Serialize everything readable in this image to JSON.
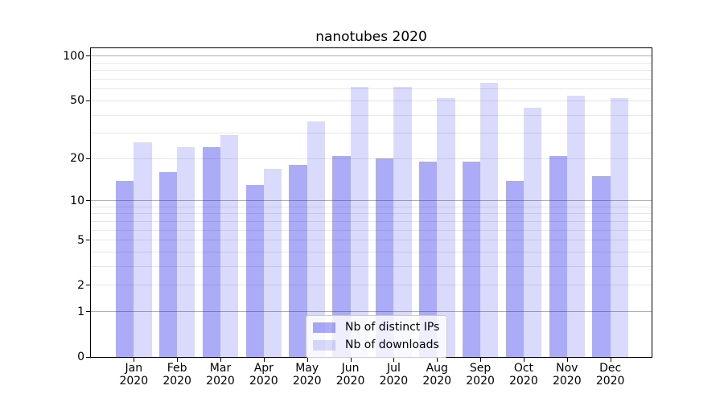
{
  "title": "nanotubes 2020",
  "chart_data": {
    "type": "bar",
    "title": "nanotubes 2020",
    "categories": [
      "Jan",
      "Feb",
      "Mar",
      "Apr",
      "May",
      "Jun",
      "Jul",
      "Aug",
      "Sep",
      "Oct",
      "Nov",
      "Dec"
    ],
    "category_year": "2020",
    "series": [
      {
        "name": "Nb of distinct IPs",
        "color": "rgba(10,10,235,0.34)",
        "values": [
          14,
          16,
          24,
          13,
          18,
          21,
          20,
          19,
          19,
          14,
          21,
          15
        ]
      },
      {
        "name": "Nb of downloads",
        "color": "rgba(10,10,235,0.15)",
        "values": [
          26,
          24,
          29,
          17,
          36,
          62,
          62,
          52,
          66,
          45,
          54,
          52
        ]
      }
    ],
    "xlabel": "",
    "ylabel": "",
    "yscale": "log1p",
    "ylim": [
      0,
      113
    ],
    "yticks": [
      0,
      1,
      2,
      5,
      10,
      20,
      50,
      100
    ],
    "major_gridlines": [
      1,
      10,
      100
    ],
    "minor_gridlines": [
      2,
      3,
      4,
      5,
      6,
      7,
      8,
      9,
      20,
      30,
      40,
      50,
      60,
      70,
      80,
      90
    ],
    "grid": true,
    "legend_position": "lower center"
  },
  "colors": {
    "grid_major": "#b0b0b0",
    "grid_minor": "#e7e7e7",
    "axis": "#000000",
    "text": "#000000",
    "legend_bg": "rgba(255,255,255,0.8)",
    "legend_border": "#cccccc"
  }
}
